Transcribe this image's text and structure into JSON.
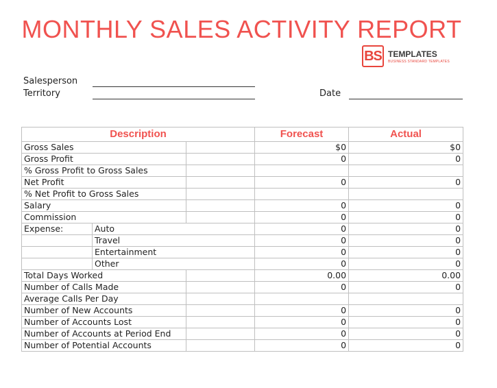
{
  "title": "MONTHLY SALES ACTIVITY REPORT",
  "logo": {
    "mark": "BS",
    "name": "TEMPLATES",
    "tagline": "BUSINESS STANDARD TEMPLATES",
    "color": "#e8453c"
  },
  "fields": {
    "salesperson": "Salesperson",
    "territory": "Territory",
    "date": "Date"
  },
  "table": {
    "headers": {
      "description": "Description",
      "forecast": "Forecast",
      "actual": "Actual"
    },
    "rows": [
      {
        "label": "Gross Sales",
        "forecast": "$0",
        "actual": "$0"
      },
      {
        "label": "Gross Profit",
        "forecast": "0",
        "actual": "0"
      },
      {
        "label": "% Gross Profit to Gross Sales",
        "forecast": "",
        "actual": ""
      },
      {
        "label": "Net Profit",
        "forecast": "0",
        "actual": "0"
      },
      {
        "label": "% Net Profit to Gross Sales",
        "forecast": "",
        "actual": ""
      },
      {
        "label": "Salary",
        "forecast": "0",
        "actual": "0"
      },
      {
        "label": "Commission",
        "forecast": "0",
        "actual": "0"
      },
      {
        "label": "Expense:",
        "sub": "Auto",
        "forecast": "0",
        "actual": "0"
      },
      {
        "label": "",
        "sub": "Travel",
        "forecast": "0",
        "actual": "0"
      },
      {
        "label": "",
        "sub": "Entertainment",
        "forecast": "0",
        "actual": "0"
      },
      {
        "label": "",
        "sub": "Other",
        "forecast": "0",
        "actual": "0"
      },
      {
        "label": "Total Days Worked",
        "forecast": "0.00",
        "actual": "0.00"
      },
      {
        "label": "Number of Calls Made",
        "forecast": "0",
        "actual": "0"
      },
      {
        "label": "Average Calls Per Day",
        "forecast": "",
        "actual": ""
      },
      {
        "label": "Number of New Accounts",
        "forecast": "0",
        "actual": "0"
      },
      {
        "label": "Number of Accounts Lost",
        "forecast": "0",
        "actual": "0"
      },
      {
        "label": "Number of Accounts at Period End",
        "forecast": "0",
        "actual": "0"
      },
      {
        "label": "Number of Potential Accounts",
        "forecast": "0",
        "actual": "0"
      }
    ]
  }
}
